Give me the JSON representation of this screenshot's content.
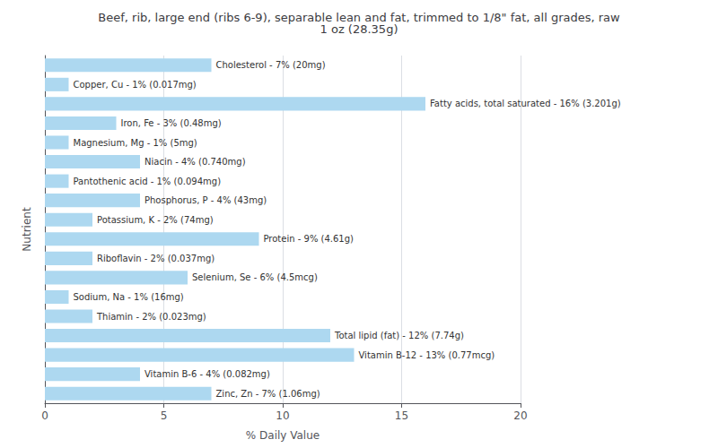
{
  "chart_data": {
    "type": "bar",
    "orientation": "horizontal",
    "title": "Beef, rib, large end (ribs 6-9), separable lean and fat, trimmed to 1/8\" fat, all grades, raw\n1 oz (28.35g)",
    "xlabel": "% Daily Value",
    "ylabel": "Nutrient",
    "categories": [
      "Cholesterol - 7% (20mg)",
      "Copper, Cu - 1% (0.017mg)",
      "Fatty acids, total saturated - 16% (3.201g)",
      "Iron, Fe - 3% (0.48mg)",
      "Magnesium, Mg - 1% (5mg)",
      "Niacin - 4% (0.740mg)",
      "Pantothenic acid - 1% (0.094mg)",
      "Phosphorus, P - 4% (43mg)",
      "Potassium, K - 2% (74mg)",
      "Protein - 9% (4.61g)",
      "Riboflavin - 2% (0.037mg)",
      "Selenium, Se - 6% (4.5mcg)",
      "Sodium, Na - 1% (16mg)",
      "Thiamin - 2% (0.023mg)",
      "Total lipid (fat) - 12% (7.74g)",
      "Vitamin B-12 - 13% (0.77mcg)",
      "Vitamin B-6 - 4% (0.082mg)",
      "Zinc, Zn - 7% (1.06mg)"
    ],
    "values": [
      7,
      1,
      16,
      3,
      1,
      4,
      1,
      4,
      2,
      9,
      2,
      6,
      1,
      2,
      12,
      13,
      4,
      7
    ],
    "color": "#add8f0",
    "xlim": [
      0,
      20
    ],
    "xticks": [
      0,
      5,
      10,
      15,
      20
    ],
    "grid": true,
    "tick_labels": "x"
  }
}
